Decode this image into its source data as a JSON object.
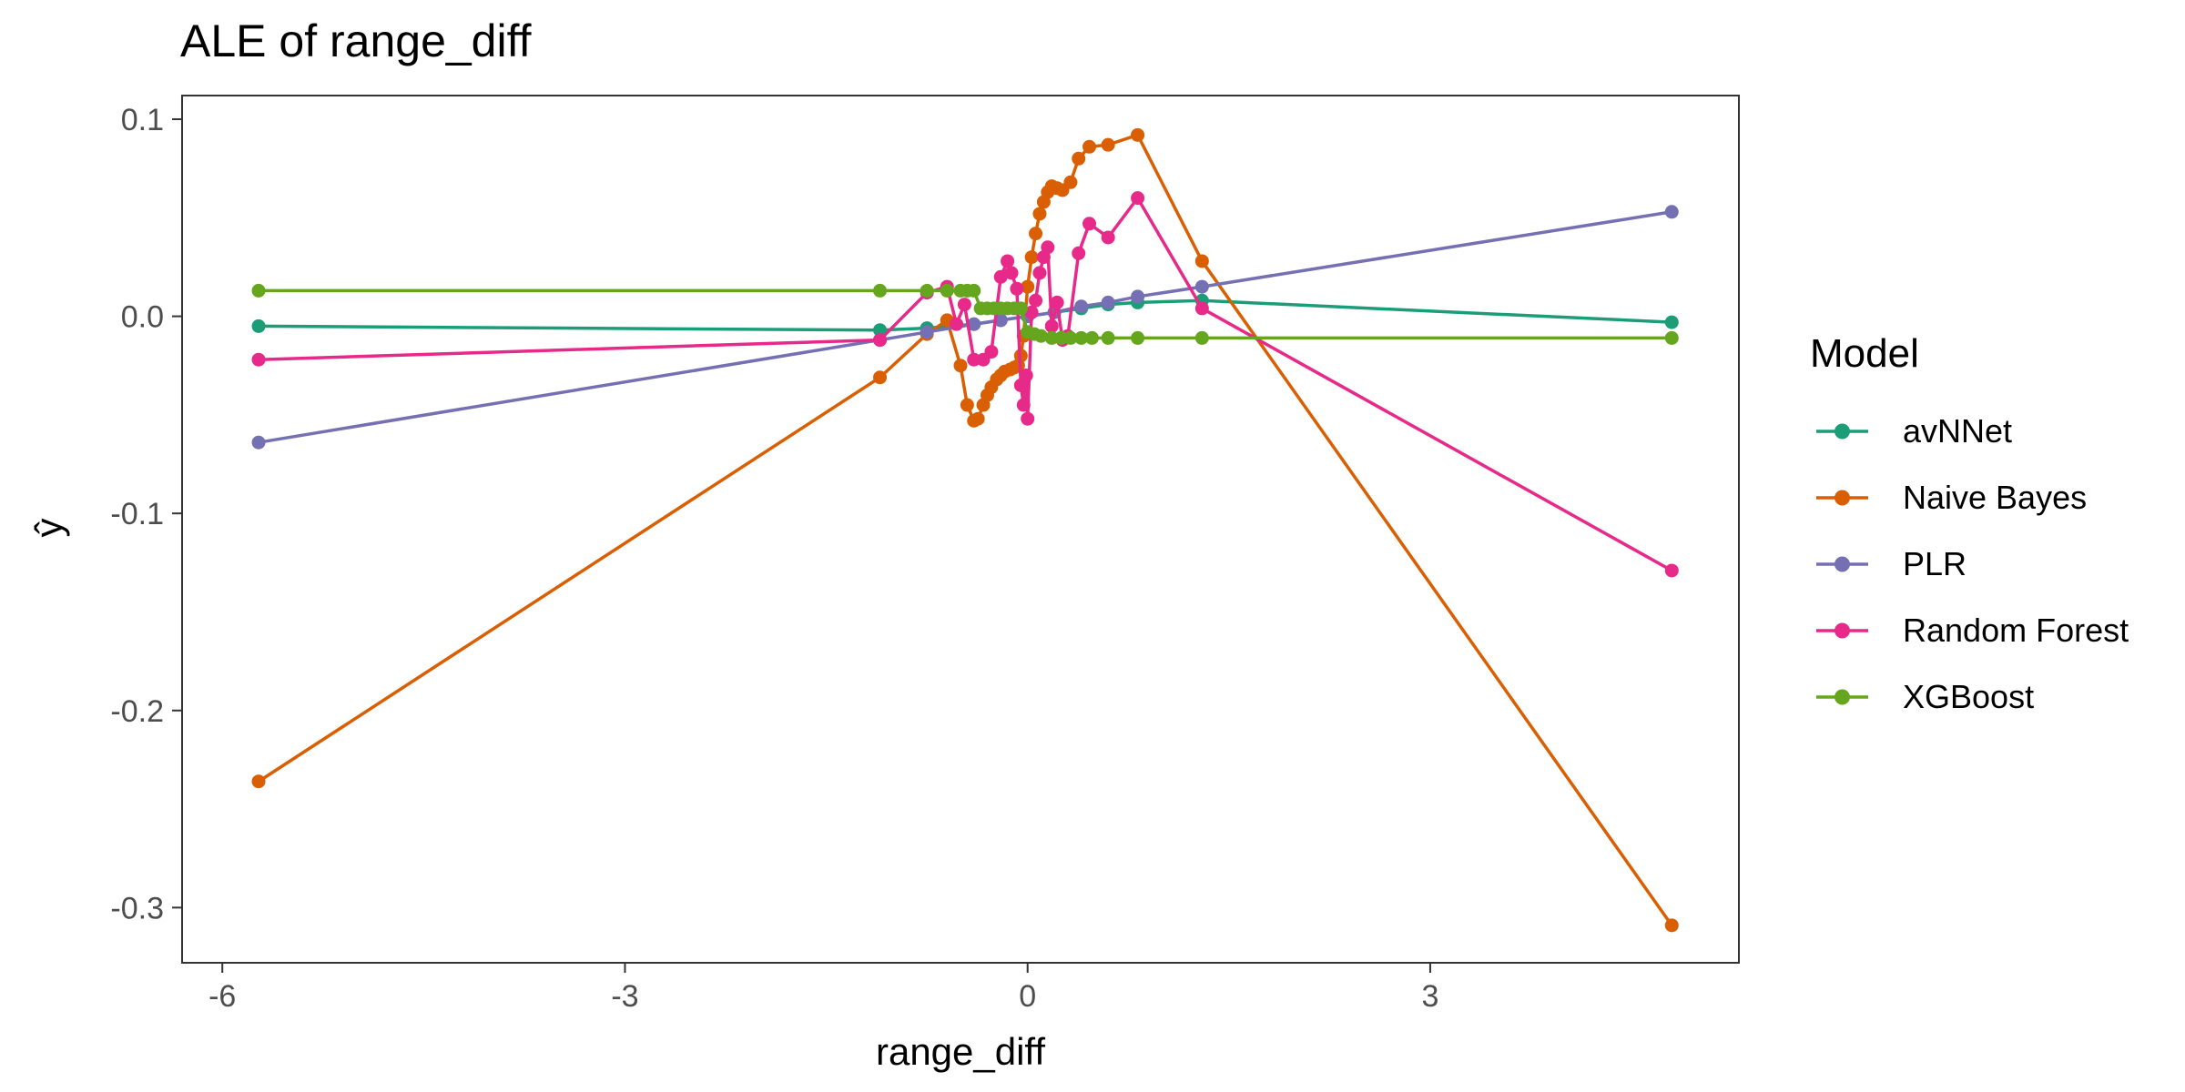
{
  "chart_data": {
    "type": "line",
    "title": "ALE of range_diff",
    "xlabel": "range_diff",
    "ylabel": "ŷ",
    "xlim": [
      -6.3,
      5.3
    ],
    "ylim": [
      -0.328,
      0.112
    ],
    "x_ticks": [
      -6,
      -3,
      0,
      3
    ],
    "x_tick_labels": [
      "-6",
      "-3",
      "0",
      "3"
    ],
    "y_ticks": [
      0.1,
      0.0,
      -0.1,
      -0.2,
      -0.3
    ],
    "y_tick_labels": [
      "0.1",
      "0.0",
      "-0.1",
      "-0.2",
      "-0.3"
    ],
    "grid": false,
    "markers": true,
    "legend": {
      "title": "Model",
      "position": "right"
    },
    "series": [
      {
        "name": "avNNet",
        "color": "#1B9E77",
        "x": [
          -5.73,
          -1.1,
          -0.75,
          -0.4,
          -0.2,
          0.0,
          0.2,
          0.4,
          0.6,
          0.82,
          1.3,
          4.8
        ],
        "y": [
          -0.005,
          -0.007,
          -0.006,
          -0.004,
          -0.002,
          0.0,
          0.002,
          0.004,
          0.006,
          0.007,
          0.008,
          -0.003
        ]
      },
      {
        "name": "Naive Bayes",
        "color": "#D95F02",
        "x": [
          -5.73,
          -1.1,
          -0.75,
          -0.6,
          -0.5,
          -0.45,
          -0.4,
          -0.37,
          -0.33,
          -0.3,
          -0.27,
          -0.23,
          -0.2,
          -0.17,
          -0.13,
          -0.1,
          -0.07,
          -0.05,
          -0.03,
          0.0,
          0.03,
          0.06,
          0.09,
          0.12,
          0.15,
          0.18,
          0.22,
          0.26,
          0.32,
          0.38,
          0.46,
          0.6,
          0.82,
          1.3,
          4.8
        ],
        "y": [
          -0.236,
          -0.031,
          -0.009,
          -0.002,
          -0.025,
          -0.045,
          -0.053,
          -0.052,
          -0.045,
          -0.04,
          -0.036,
          -0.032,
          -0.03,
          -0.028,
          -0.027,
          -0.026,
          -0.025,
          -0.02,
          -0.01,
          0.015,
          0.03,
          0.042,
          0.052,
          0.058,
          0.063,
          0.066,
          0.065,
          0.064,
          0.068,
          0.08,
          0.086,
          0.087,
          0.092,
          0.028,
          -0.309
        ]
      },
      {
        "name": "PLR",
        "color": "#7570B3",
        "x": [
          -5.73,
          -1.1,
          -0.75,
          -0.4,
          -0.2,
          0.0,
          0.2,
          0.4,
          0.6,
          0.82,
          1.3,
          4.8
        ],
        "y": [
          -0.064,
          -0.012,
          -0.008,
          -0.004,
          -0.002,
          0.0,
          0.002,
          0.005,
          0.007,
          0.01,
          0.015,
          0.053
        ]
      },
      {
        "name": "Random Forest",
        "color": "#E7298A",
        "x": [
          -5.73,
          -1.1,
          -0.75,
          -0.6,
          -0.53,
          -0.47,
          -0.4,
          -0.33,
          -0.27,
          -0.2,
          -0.15,
          -0.12,
          -0.08,
          -0.05,
          -0.03,
          -0.01,
          0.0,
          0.03,
          0.06,
          0.09,
          0.12,
          0.15,
          0.18,
          0.22,
          0.26,
          0.3,
          0.38,
          0.46,
          0.6,
          0.82,
          1.3,
          4.8
        ],
        "y": [
          -0.022,
          -0.012,
          0.012,
          0.015,
          -0.004,
          0.006,
          -0.022,
          -0.022,
          -0.018,
          0.02,
          0.028,
          0.022,
          0.014,
          -0.035,
          -0.045,
          -0.03,
          -0.052,
          0.002,
          0.008,
          0.022,
          0.03,
          0.035,
          -0.005,
          0.007,
          -0.012,
          -0.01,
          0.032,
          0.047,
          0.04,
          0.06,
          0.004,
          -0.129
        ]
      },
      {
        "name": "XGBoost",
        "color": "#66A61E",
        "x": [
          -5.73,
          -1.1,
          -0.75,
          -0.6,
          -0.5,
          -0.45,
          -0.4,
          -0.35,
          -0.3,
          -0.25,
          -0.2,
          -0.15,
          -0.1,
          -0.05,
          0.0,
          0.05,
          0.1,
          0.18,
          0.25,
          0.32,
          0.4,
          0.48,
          0.6,
          0.82,
          1.3,
          4.8
        ],
        "y": [
          0.013,
          0.013,
          0.013,
          0.013,
          0.013,
          0.013,
          0.013,
          0.004,
          0.004,
          0.004,
          0.004,
          0.004,
          0.004,
          0.004,
          -0.008,
          -0.009,
          -0.01,
          -0.011,
          -0.011,
          -0.011,
          -0.011,
          -0.011,
          -0.011,
          -0.011,
          -0.011,
          -0.011
        ]
      }
    ]
  }
}
